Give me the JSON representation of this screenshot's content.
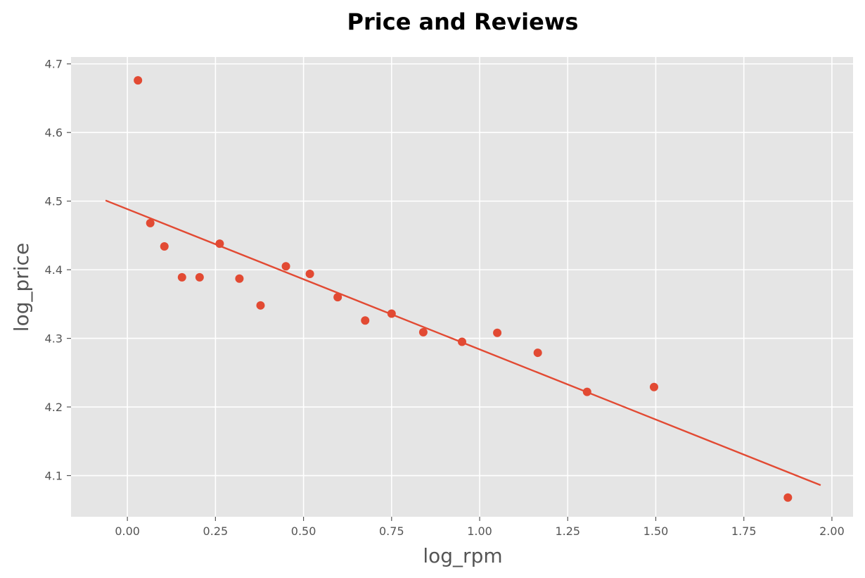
{
  "chart_data": {
    "type": "scatter",
    "title": "Price and Reviews",
    "xlabel": "log_rpm",
    "ylabel": "log_price",
    "xlim": [
      -0.16,
      2.06
    ],
    "ylim": [
      4.04,
      4.71
    ],
    "xticks": [
      0.0,
      0.25,
      0.5,
      0.75,
      1.0,
      1.25,
      1.5,
      1.75,
      2.0
    ],
    "xtick_labels": [
      "0.00",
      "0.25",
      "0.50",
      "0.75",
      "1.00",
      "1.25",
      "1.50",
      "1.75",
      "2.00"
    ],
    "yticks": [
      4.1,
      4.2,
      4.3,
      4.4,
      4.5,
      4.6,
      4.7
    ],
    "ytick_labels": [
      "4.1",
      "4.2",
      "4.3",
      "4.4",
      "4.5",
      "4.6",
      "4.7"
    ],
    "grid": true,
    "background": "#e5e5e5",
    "color": "#e24a33",
    "points": [
      {
        "x": 0.03,
        "y": 4.676
      },
      {
        "x": 0.065,
        "y": 4.468
      },
      {
        "x": 0.105,
        "y": 4.434
      },
      {
        "x": 0.155,
        "y": 4.389
      },
      {
        "x": 0.205,
        "y": 4.389
      },
      {
        "x": 0.262,
        "y": 4.438
      },
      {
        "x": 0.318,
        "y": 4.387
      },
      {
        "x": 0.378,
        "y": 4.348
      },
      {
        "x": 0.45,
        "y": 4.405
      },
      {
        "x": 0.518,
        "y": 4.394
      },
      {
        "x": 0.597,
        "y": 4.36
      },
      {
        "x": 0.675,
        "y": 4.326
      },
      {
        "x": 0.75,
        "y": 4.336
      },
      {
        "x": 0.84,
        "y": 4.309
      },
      {
        "x": 0.95,
        "y": 4.295
      },
      {
        "x": 1.05,
        "y": 4.308
      },
      {
        "x": 1.165,
        "y": 4.279
      },
      {
        "x": 1.305,
        "y": 4.222
      },
      {
        "x": 1.495,
        "y": 4.229
      },
      {
        "x": 1.875,
        "y": 4.068
      }
    ],
    "fit_line": {
      "x": [
        -0.062,
        1.968
      ],
      "y": [
        4.501,
        4.086
      ]
    }
  }
}
